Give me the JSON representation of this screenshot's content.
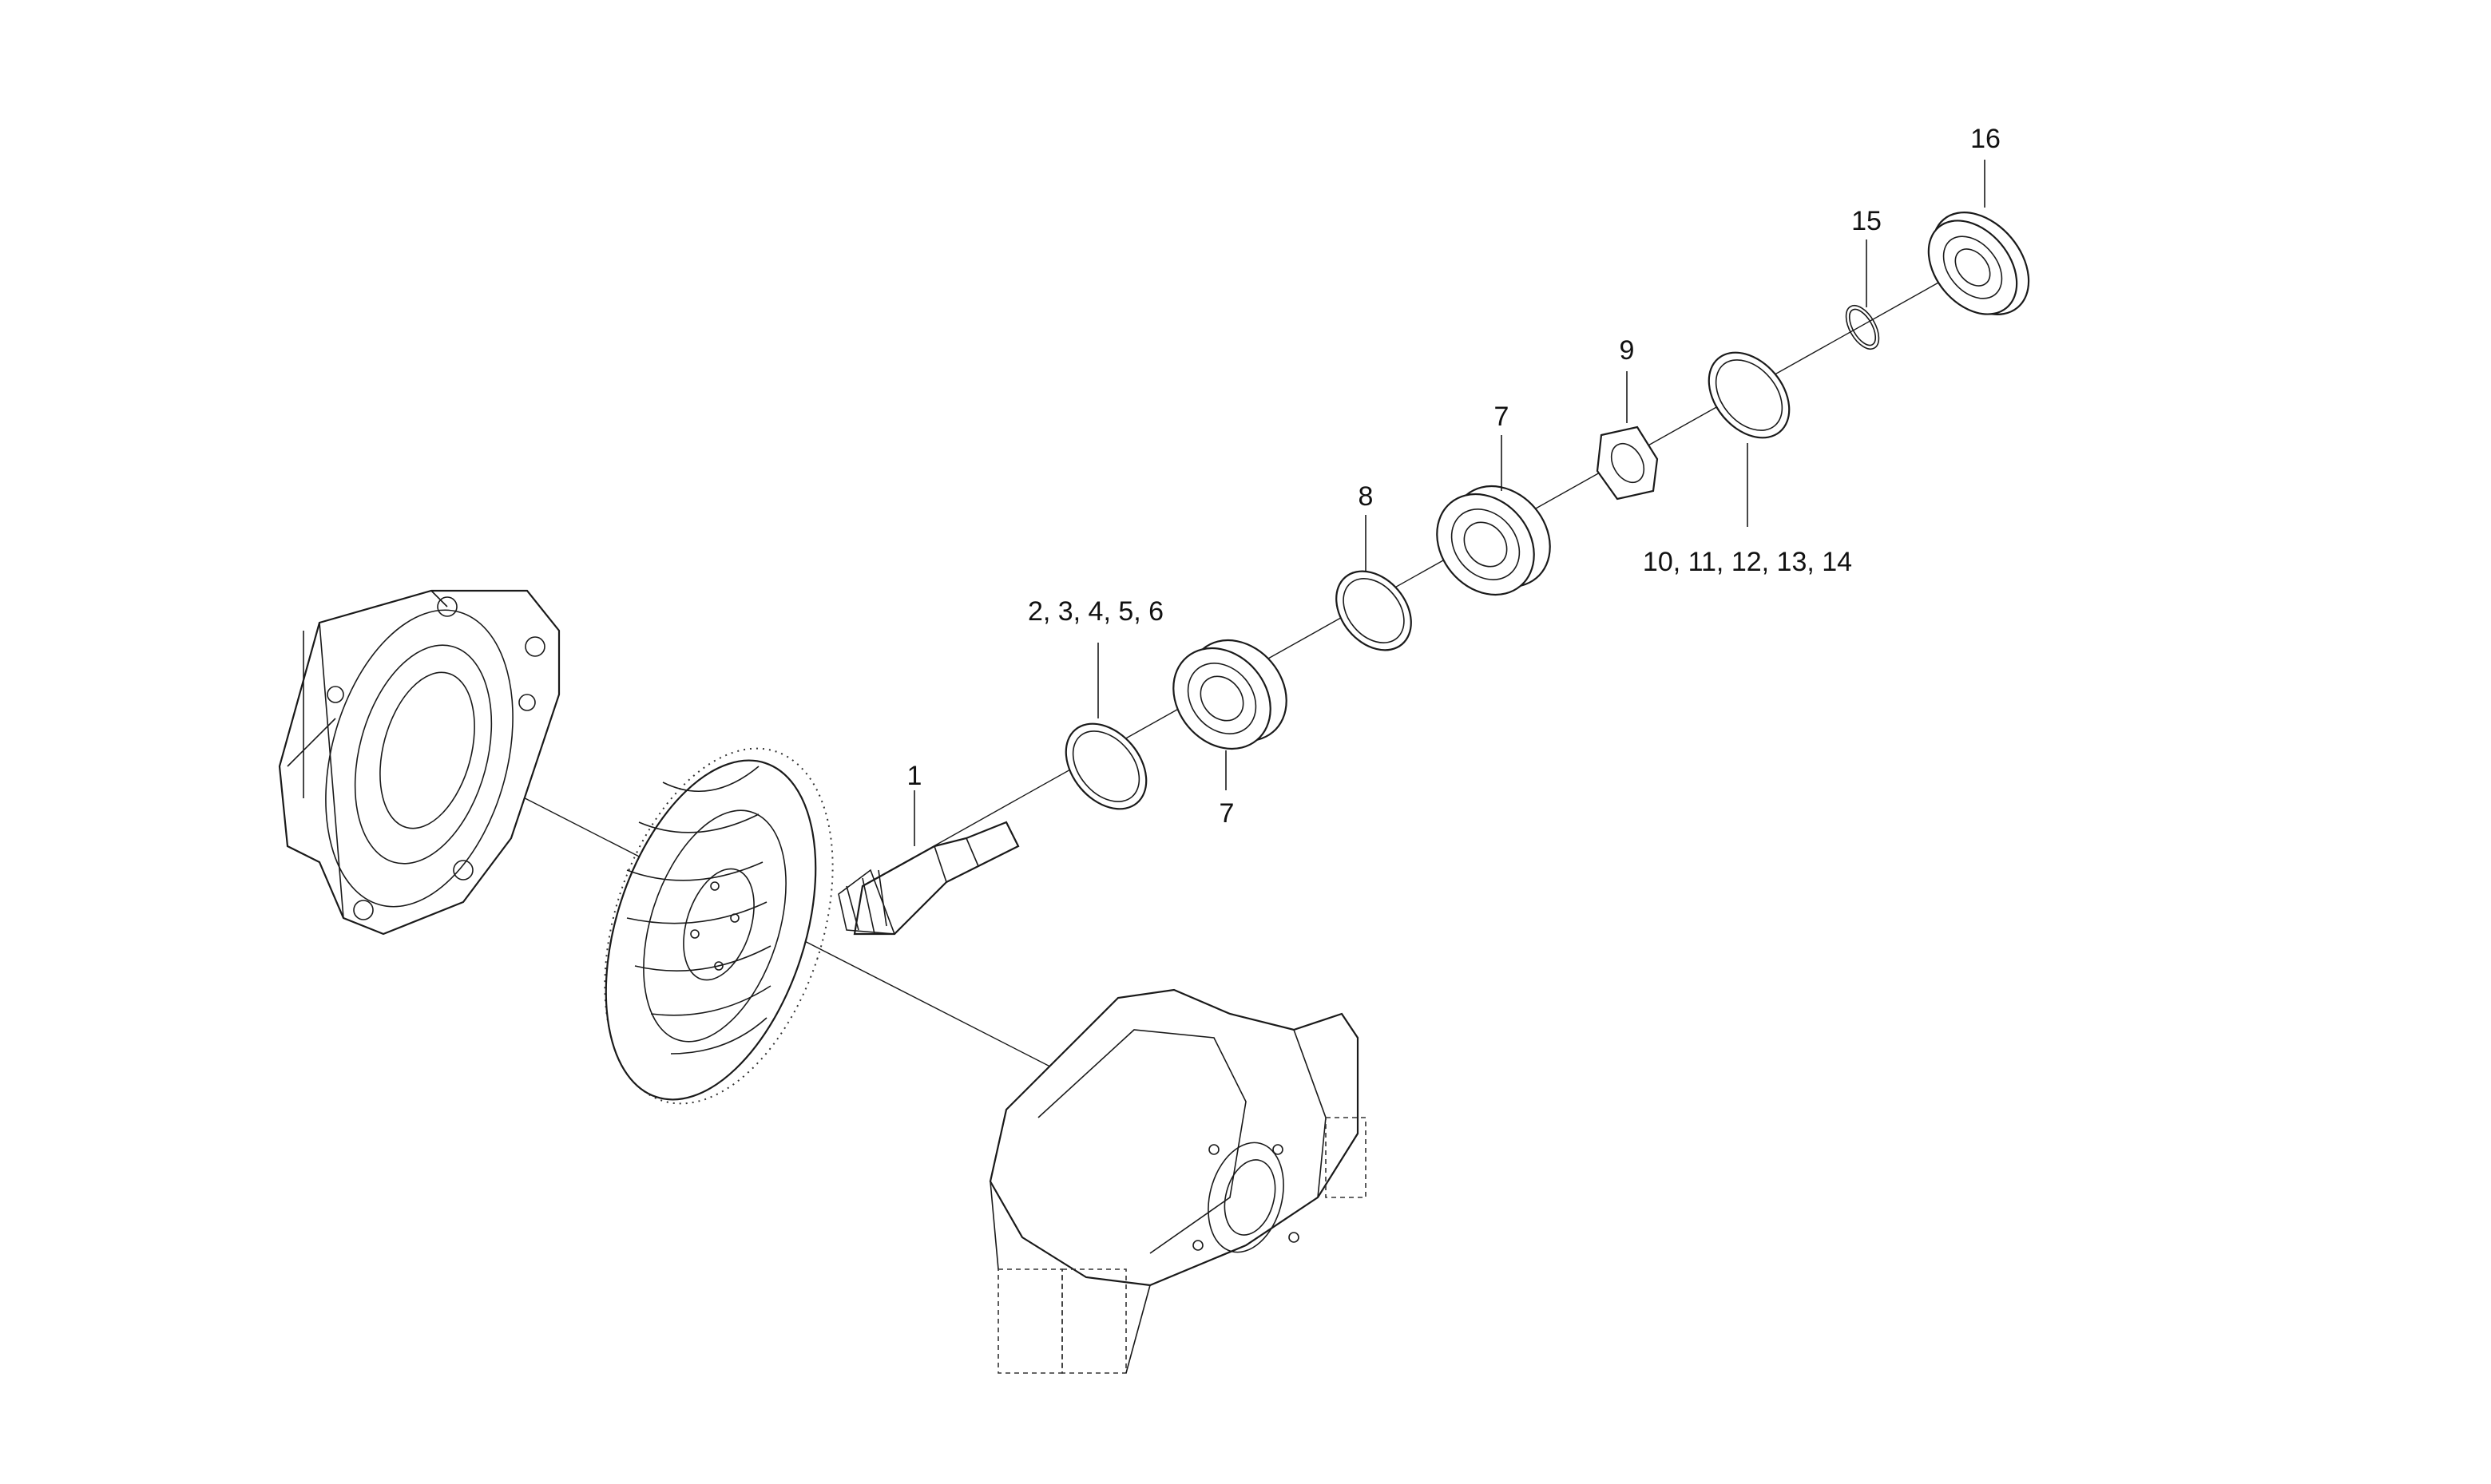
{
  "callouts": {
    "c1": "1",
    "c2": "2, 3, 4, 5, 6",
    "c7a": "7",
    "c7b": "7",
    "c8": "8",
    "c9": "9",
    "c10": "10, 11, 12, 13, 14",
    "c15": "15",
    "c16": "16"
  }
}
